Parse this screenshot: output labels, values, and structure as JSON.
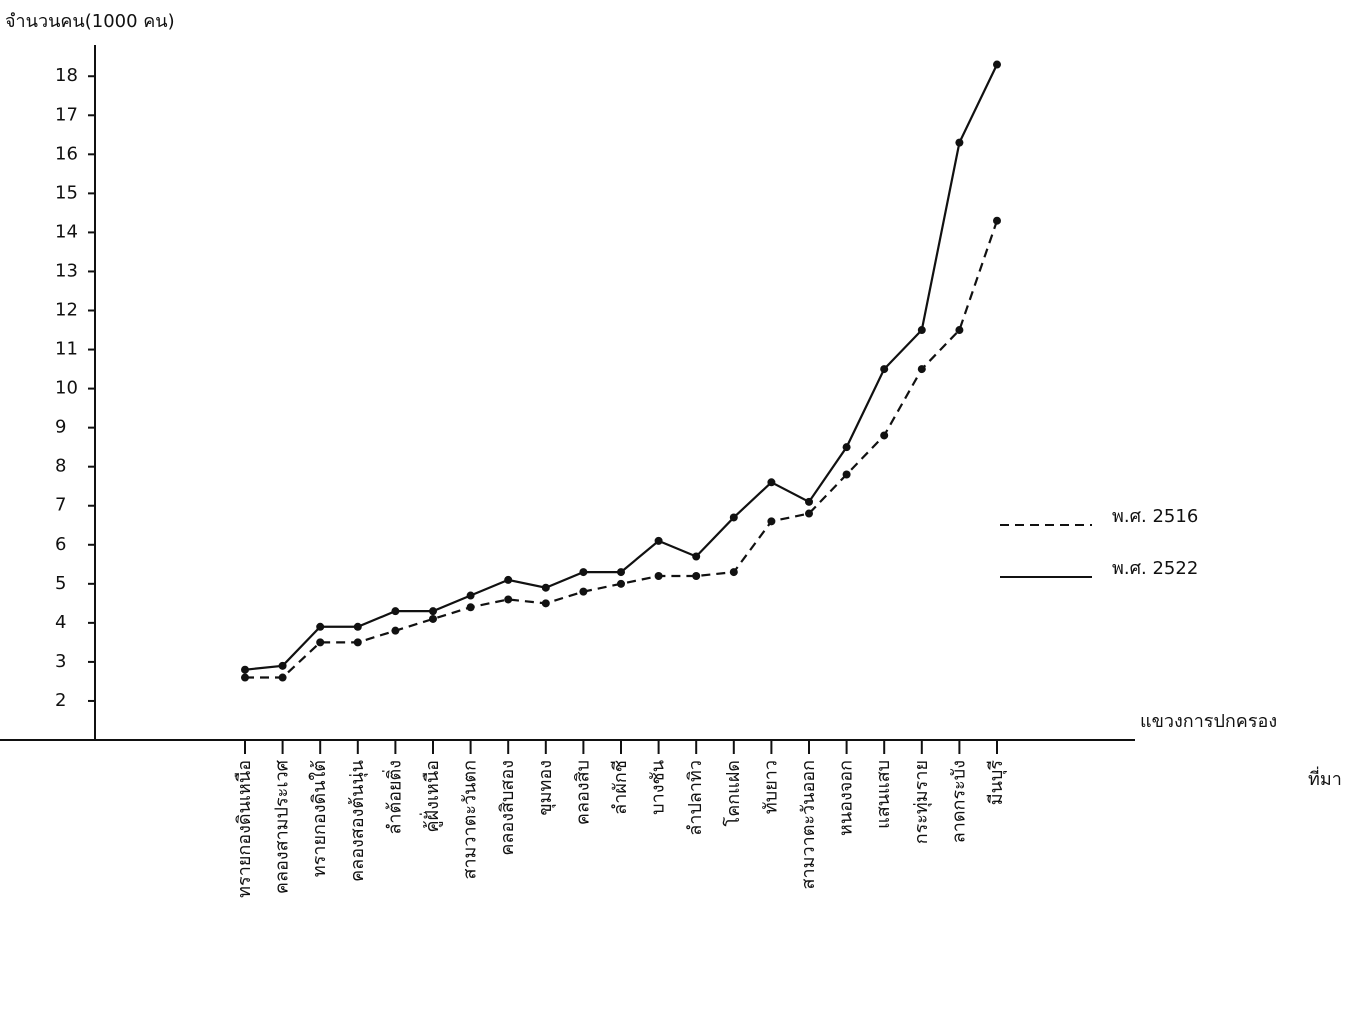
{
  "chart_data": {
    "type": "line",
    "ylabel": "จำนวนคน(1000 คน)",
    "xlabel": "แขวงการปกครอง",
    "annotation": "ที่มา",
    "categories": [
      "ทรายกองดินเหนือ",
      "คลองสามประเวศ",
      "ทรายกองดินใต้",
      "คลองสองต้นนุ่น",
      "ลำต้อยติ่ง",
      "คู้ฝั่งเหนือ",
      "สามวาตะวันตก",
      "คลองสิบสอง",
      "ขุมทอง",
      "คลองสิบ",
      "ลำผักชี",
      "บางชัน",
      "ลำปลาทิว",
      "โคกแฝด",
      "ทับยาว",
      "สามวาตะวันออก",
      "หนองจอก",
      "แสนแสบ",
      "กระทุ่มราย",
      "ลาดกระบัง",
      "มีนบุรี"
    ],
    "series": [
      {
        "name": "พ.ศ. 2516",
        "color": "#111111",
        "dash": true,
        "values": [
          2.6,
          2.6,
          3.5,
          3.5,
          3.8,
          4.1,
          4.4,
          4.6,
          4.5,
          4.8,
          5.0,
          5.2,
          5.2,
          5.3,
          6.6,
          6.8,
          7.8,
          8.8,
          10.5,
          11.5,
          14.3
        ]
      },
      {
        "name": "พ.ศ. 2522",
        "color": "#111111",
        "dash": false,
        "values": [
          2.8,
          2.9,
          3.9,
          3.9,
          4.3,
          4.3,
          4.7,
          5.1,
          4.9,
          5.3,
          5.3,
          6.1,
          5.7,
          6.7,
          7.6,
          7.1,
          8.5,
          10.5,
          11.5,
          16.3,
          18.3
        ]
      }
    ],
    "ylim": [
      1,
      18.8
    ],
    "yticks": [
      2,
      3,
      4,
      5,
      6,
      7,
      8,
      9,
      10,
      11,
      12,
      13,
      14,
      15,
      16,
      17,
      18
    ],
    "legend": "right"
  }
}
